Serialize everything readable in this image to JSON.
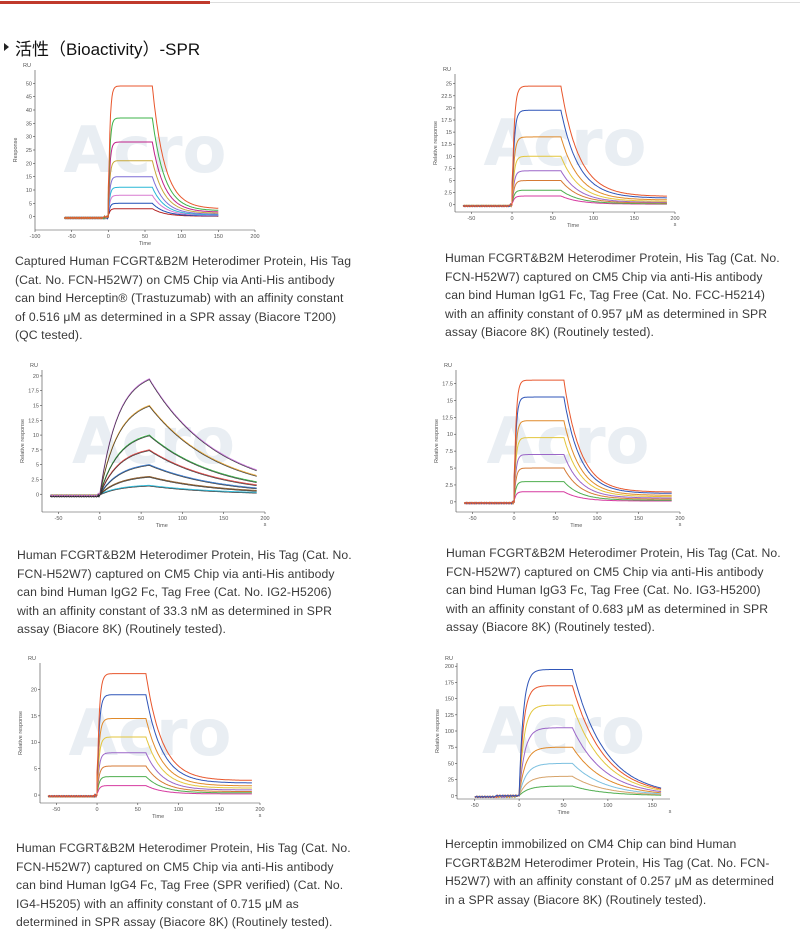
{
  "page": {
    "section_title": "活性（Bioactivity）-SPR"
  },
  "panels": [
    {
      "caption": "Captured Human FCGRT&B2M Heterodimer Protein, His Tag (Cat. No. FCN-H52W7) on CM5 Chip via Anti-His antibody can bind Herceptin® (Trastuzumab) with an affinity constant of 0.516 μM as determined in a SPR assay (Biacore T200) (QC tested).",
      "watermark": "Acro"
    },
    {
      "caption": "Human FCGRT&B2M Heterodimer Protein, His Tag (Cat. No. FCN-H52W7) captured on CM5 Chip via anti-His antibody can bind Human IgG1 Fc, Tag Free (Cat. No. FCC-H5214) with an affinity constant of 0.957 μM as determined in SPR assay (Biacore 8K) (Routinely tested).",
      "watermark": "Acro"
    },
    {
      "caption": "Human FCGRT&B2M Heterodimer Protein, His Tag (Cat. No. FCN-H52W7) captured on CM5 Chip via anti-His antibody can bind Human IgG2 Fc, Tag Free (Cat. No. IG2-H5206) with an affinity constant of 33.3 nM as determined in SPR assay (Biacore 8K) (Routinely tested).",
      "watermark": "Acro"
    },
    {
      "caption": "Human FCGRT&B2M Heterodimer Protein, His Tag (Cat. No. FCN-H52W7) captured on CM5 Chip via anti-His antibody can bind Human IgG3 Fc, Tag Free (Cat. No. IG3-H5200) with an affinity constant of 0.683 μM as determined in SPR assay (Biacore 8K) (Routinely tested).",
      "watermark": "Acro"
    },
    {
      "caption": "Human FCGRT&B2M Heterodimer Protein, His Tag (Cat. No. FCN-H52W7) captured on CM5 Chip via anti-His antibody can bind Human IgG4 Fc, Tag Free (SPR verified) (Cat. No. IG4-H5205) with an affinity constant of 0.715 μM as determined in SPR assay (Biacore 8K) (Routinely tested).",
      "watermark": "Acro"
    },
    {
      "caption": "Herceptin immobilized on CM4 Chip can bind Human FCGRT&B2M Heterodimer Protein, His Tag (Cat. No. FCN-H52W7) with an affinity constant of 0.257 μM as determined in a SPR assay (Biacore 8K) (Routinely tested).",
      "watermark": "Acro"
    }
  ],
  "chart_data": [
    {
      "type": "line",
      "title": "",
      "xlabel": "Time",
      "ylabel": "Response",
      "unit_label": "RU",
      "xlim": [
        -100,
        200
      ],
      "ylim": [
        -5,
        55
      ],
      "x_ticks": [
        -100,
        -50,
        0,
        50,
        100,
        150,
        200
      ],
      "y_ticks": [
        0,
        5,
        10,
        15,
        20,
        25,
        30,
        35,
        40,
        45,
        50
      ],
      "x_tick_labels": [
        "-100",
        "-50",
        "0",
        "50",
        "100",
        "150",
        "200"
      ],
      "y_tick_labels": [
        "0",
        "5",
        "10",
        "15",
        "20",
        "25",
        "30",
        "35",
        "40",
        "45",
        "50"
      ],
      "model": {
        "baseline_start": -60,
        "inject_start": 0,
        "inject_end": 60,
        "end": 150,
        "shape": "square",
        "kon": 0.5,
        "koff": 0.06,
        "tail": 0.06
      },
      "series": [
        {
          "name": "c1",
          "color": "#e8562c",
          "max": 49
        },
        {
          "name": "c2",
          "color": "#3cb34a",
          "max": 37
        },
        {
          "name": "c3",
          "color": "#c0208a",
          "max": 28
        },
        {
          "name": "c4",
          "color": "#c7a83a",
          "max": 21
        },
        {
          "name": "c5",
          "color": "#7f6fd6",
          "max": 15
        },
        {
          "name": "c6",
          "color": "#29b7d6",
          "max": 11
        },
        {
          "name": "c7",
          "color": "#d87ad0",
          "max": 8
        },
        {
          "name": "c8",
          "color": "#1f4fb5",
          "max": 5
        },
        {
          "name": "c9",
          "color": "#b42222",
          "max": 3
        }
      ]
    },
    {
      "type": "line",
      "title": "",
      "xlabel": "Time",
      "ylabel": "Relative response",
      "unit_label": "RU",
      "x_unit": "s",
      "xlim": [
        -70,
        200
      ],
      "ylim": [
        -1.5,
        27
      ],
      "x_ticks": [
        -50,
        0,
        50,
        100,
        150,
        200
      ],
      "y_ticks": [
        0,
        2.5,
        5,
        7.5,
        10,
        12.5,
        15,
        17.5,
        20,
        22.5,
        25
      ],
      "x_tick_labels": [
        "-50",
        "0",
        "50",
        "100",
        "150",
        "200"
      ],
      "y_tick_labels": [
        "0",
        "2.5",
        "5",
        "7.5",
        "10",
        "12.5",
        "15",
        "17.5",
        "20",
        "22.5",
        "25"
      ],
      "model": {
        "baseline_start": -60,
        "inject_start": 0,
        "inject_end": 60,
        "end": 190,
        "shape": "square",
        "kon": 0.4,
        "koff": 0.045,
        "tail": 0.07
      },
      "series": [
        {
          "name": "c1",
          "color": "#e8562c",
          "max": 24.5
        },
        {
          "name": "c2",
          "color": "#2f55b8",
          "max": 19.5
        },
        {
          "name": "c3",
          "color": "#e08a2a",
          "max": 14
        },
        {
          "name": "c4",
          "color": "#e3c63c",
          "max": 10
        },
        {
          "name": "c5",
          "color": "#9b66c8",
          "max": 7
        },
        {
          "name": "c6",
          "color": "#d67a35",
          "max": 5
        },
        {
          "name": "c7",
          "color": "#4fae4f",
          "max": 3
        },
        {
          "name": "c8",
          "color": "#d63aa0",
          "max": 1.8
        }
      ]
    },
    {
      "type": "line",
      "title": "",
      "xlabel": "Time",
      "ylabel": "Relative response",
      "unit_label": "RU",
      "x_unit": "s",
      "xlim": [
        -70,
        200
      ],
      "ylim": [
        -3,
        21
      ],
      "x_ticks": [
        -50,
        0,
        50,
        100,
        150,
        200
      ],
      "y_ticks": [
        0,
        2.5,
        5,
        7.5,
        10,
        12.5,
        15,
        17.5,
        20
      ],
      "x_tick_labels": [
        "-50",
        "0",
        "50",
        "100",
        "150",
        "200"
      ],
      "y_tick_labels": [
        "0",
        "2.5",
        "5",
        "7.5",
        "10",
        "12.5",
        "15",
        "17.5",
        "20"
      ],
      "model": {
        "baseline_start": -60,
        "inject_start": 0,
        "inject_end": 60,
        "end": 190,
        "shape": "kinetic",
        "kon": 0.04,
        "koff": 0.012,
        "tail": 0
      },
      "fit_color": "#222222",
      "series": [
        {
          "name": "c1",
          "color": "#c774d9",
          "max": 19.5
        },
        {
          "name": "c2",
          "color": "#e3a53a",
          "max": 15
        },
        {
          "name": "c3",
          "color": "#3cae4a",
          "max": 10
        },
        {
          "name": "c4",
          "color": "#d94848",
          "max": 7.5
        },
        {
          "name": "c5",
          "color": "#3a78c8",
          "max": 5
        },
        {
          "name": "c6",
          "color": "#8a5a2a",
          "max": 3
        },
        {
          "name": "c7",
          "color": "#29b7d6",
          "max": 1.5
        }
      ]
    },
    {
      "type": "line",
      "title": "",
      "xlabel": "Time",
      "ylabel": "Relative response",
      "unit_label": "RU",
      "x_unit": "s",
      "xlim": [
        -70,
        200
      ],
      "ylim": [
        -1.5,
        19.5
      ],
      "x_ticks": [
        -50,
        0,
        50,
        100,
        150,
        200
      ],
      "y_ticks": [
        0,
        2.5,
        5,
        7.5,
        10,
        12.5,
        15,
        17.5
      ],
      "x_tick_labels": [
        "-50",
        "0",
        "50",
        "100",
        "150",
        "200"
      ],
      "y_tick_labels": [
        "0",
        "2.5",
        "5",
        "7.5",
        "10",
        "12.5",
        "15",
        "17.5"
      ],
      "model": {
        "baseline_start": -60,
        "inject_start": 0,
        "inject_end": 60,
        "end": 190,
        "shape": "square",
        "kon": 0.45,
        "koff": 0.05,
        "tail": 0.08
      },
      "series": [
        {
          "name": "c1",
          "color": "#e8562c",
          "max": 18
        },
        {
          "name": "c2",
          "color": "#2f55b8",
          "max": 15.5
        },
        {
          "name": "c3",
          "color": "#e08a2a",
          "max": 12
        },
        {
          "name": "c4",
          "color": "#e3c63c",
          "max": 9.5
        },
        {
          "name": "c5",
          "color": "#9b66c8",
          "max": 7
        },
        {
          "name": "c6",
          "color": "#d67a35",
          "max": 5
        },
        {
          "name": "c7",
          "color": "#4fae4f",
          "max": 3
        },
        {
          "name": "c8",
          "color": "#d63aa0",
          "max": 1.5
        }
      ]
    },
    {
      "type": "line",
      "title": "",
      "xlabel": "Time",
      "ylabel": "Relative response",
      "unit_label": "RU",
      "x_unit": "s",
      "xlim": [
        -70,
        200
      ],
      "ylim": [
        -1.5,
        25
      ],
      "x_ticks": [
        -50,
        0,
        50,
        100,
        150,
        200
      ],
      "y_ticks": [
        0,
        5,
        10,
        15,
        20
      ],
      "x_tick_labels": [
        "-50",
        "0",
        "50",
        "100",
        "150",
        "200"
      ],
      "y_tick_labels": [
        "0",
        "5",
        "10",
        "15",
        "20"
      ],
      "model": {
        "baseline_start": -60,
        "inject_start": 0,
        "inject_end": 60,
        "end": 190,
        "shape": "square",
        "kon": 0.4,
        "koff": 0.05,
        "tail": 0.12
      },
      "series": [
        {
          "name": "c1",
          "color": "#e8562c",
          "max": 23
        },
        {
          "name": "c2",
          "color": "#2f55b8",
          "max": 19
        },
        {
          "name": "c3",
          "color": "#e08a2a",
          "max": 14.5
        },
        {
          "name": "c4",
          "color": "#e3c63c",
          "max": 11
        },
        {
          "name": "c5",
          "color": "#9b66c8",
          "max": 8
        },
        {
          "name": "c6",
          "color": "#d67a35",
          "max": 5.5
        },
        {
          "name": "c7",
          "color": "#4fae4f",
          "max": 3.5
        },
        {
          "name": "c8",
          "color": "#d63aa0",
          "max": 1.8
        }
      ]
    },
    {
      "type": "line",
      "title": "",
      "xlabel": "Time",
      "ylabel": "Relative response",
      "unit_label": "RU",
      "x_unit": "s",
      "xlim": [
        -70,
        170
      ],
      "ylim": [
        -5,
        205
      ],
      "x_ticks": [
        -50,
        0,
        50,
        100,
        150
      ],
      "y_ticks": [
        0,
        25,
        50,
        75,
        100,
        125,
        150,
        175,
        200
      ],
      "x_tick_labels": [
        "-50",
        "0",
        "50",
        "100",
        "150"
      ],
      "y_tick_labels": [
        "0",
        "25",
        "50",
        "75",
        "100",
        "125",
        "150",
        "175",
        "200"
      ],
      "model": {
        "baseline_start": -50,
        "inject_start": 0,
        "inject_end": 60,
        "end": 160,
        "shape": "kinetic",
        "kon": 0.09,
        "koff": 0.028,
        "tail": 0
      },
      "series": [
        {
          "name": "c1",
          "color": "#2f55b8",
          "max": 195
        },
        {
          "name": "c2",
          "color": "#e8562c",
          "max": 170
        },
        {
          "name": "c3",
          "color": "#e3c63c",
          "max": 140
        },
        {
          "name": "c4",
          "color": "#9b66c8",
          "max": 105
        },
        {
          "name": "c5",
          "color": "#e08a2a",
          "max": 75
        },
        {
          "name": "c6",
          "color": "#7cc0e0",
          "max": 50
        },
        {
          "name": "c7",
          "color": "#d6a36a",
          "max": 30
        },
        {
          "name": "c8",
          "color": "#4fae4f",
          "max": 15
        }
      ]
    }
  ]
}
